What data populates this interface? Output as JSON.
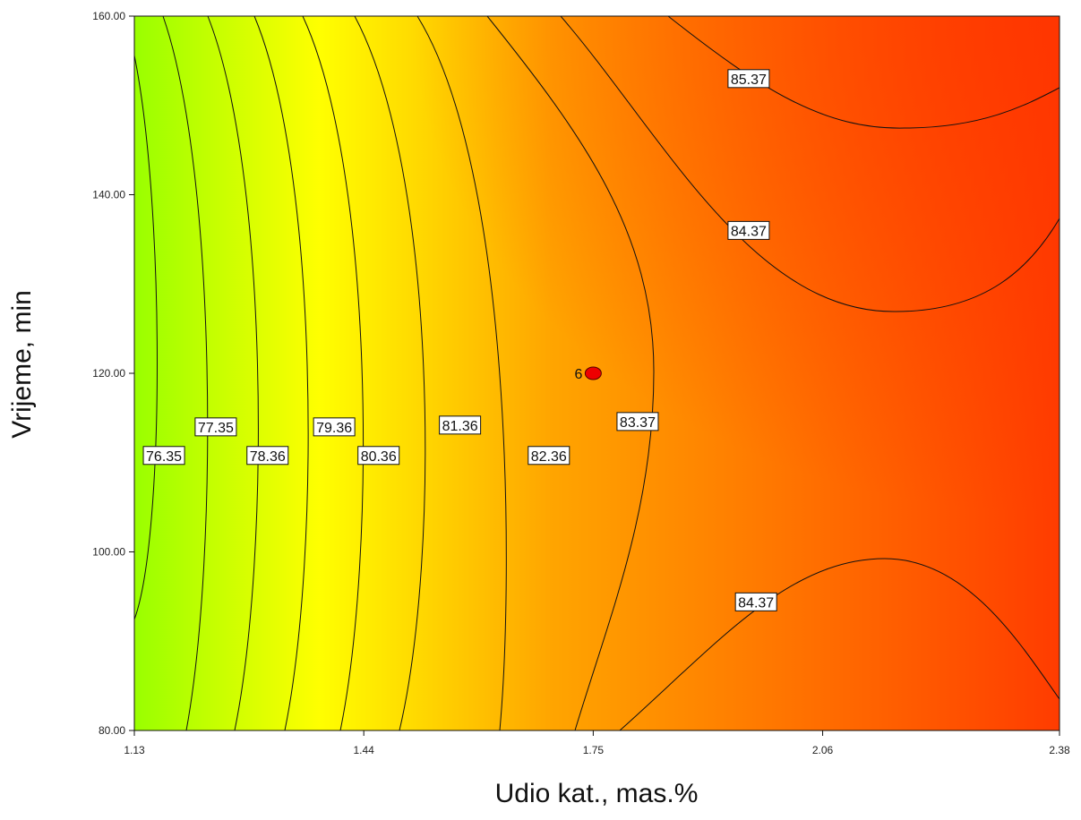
{
  "chart_data": {
    "type": "contour",
    "xlabel": "Udio kat., mas.%",
    "ylabel": "Vrijeme, min",
    "xlim": [
      1.13,
      2.38
    ],
    "ylim": [
      80,
      160
    ],
    "x_ticks": [
      "1.13",
      "1.44",
      "1.75",
      "2.06",
      "2.38"
    ],
    "y_ticks": [
      "80.00",
      "100.00",
      "120.00",
      "140.00",
      "160.00"
    ],
    "colorscale": [
      "#99ff00",
      "#ffff00",
      "#ffa500",
      "#ff3c00"
    ],
    "contour_levels": [
      "76.35",
      "77.35",
      "78.36",
      "79.36",
      "80.36",
      "81.36",
      "82.36",
      "83.37",
      "84.37",
      "85.37"
    ],
    "contour_labels": [
      {
        "text": "76.35",
        "x": 1.17,
        "y": 110.8
      },
      {
        "text": "77.35",
        "x": 1.24,
        "y": 114.0
      },
      {
        "text": "78.36",
        "x": 1.31,
        "y": 110.8
      },
      {
        "text": "79.36",
        "x": 1.4,
        "y": 114.0
      },
      {
        "text": "80.36",
        "x": 1.46,
        "y": 110.8
      },
      {
        "text": "81.36",
        "x": 1.57,
        "y": 114.2
      },
      {
        "text": "82.36",
        "x": 1.69,
        "y": 110.8
      },
      {
        "text": "83.37",
        "x": 1.81,
        "y": 114.6
      },
      {
        "text": "85.37",
        "x": 1.96,
        "y": 153.0
      },
      {
        "text": "84.37",
        "x": 1.96,
        "y": 136.0
      },
      {
        "text": "84.37",
        "x": 1.97,
        "y": 94.4
      }
    ],
    "design_points": [
      {
        "label": "6",
        "x": 1.75,
        "y": 120
      }
    ]
  }
}
